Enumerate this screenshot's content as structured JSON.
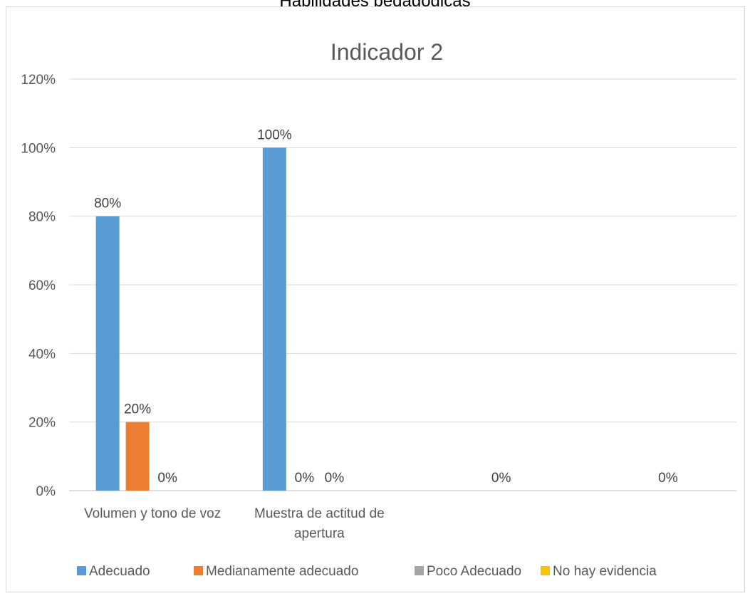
{
  "page_title": "Habilidades pedagógicas",
  "chart_data": {
    "type": "bar",
    "title": "Indicador 2",
    "xlabel": "",
    "ylabel": "",
    "ylim": [
      0,
      1.2
    ],
    "yticks": [
      "0%",
      "20%",
      "40%",
      "60%",
      "80%",
      "100%",
      "120%"
    ],
    "categories": [
      [
        "Volumen y tono de voz"
      ],
      [
        "Muestra de actitud de",
        "apertura"
      ],
      [
        ""
      ],
      [
        ""
      ]
    ],
    "series": [
      {
        "name": "Adecuado",
        "color": "#5b9bd5",
        "values": [
          0.8,
          1.0,
          null,
          null
        ],
        "labels": [
          "80%",
          "100%",
          "",
          ""
        ]
      },
      {
        "name": "Medianamente adecuado",
        "color": "#ed7d31",
        "values": [
          0.2,
          0.0,
          null,
          null
        ],
        "labels": [
          "20%",
          "0%",
          "",
          ""
        ]
      },
      {
        "name": "Poco Adecuado",
        "color": "#a5a5a5",
        "values": [
          0.0,
          0.0,
          0.0,
          0.0
        ],
        "labels": [
          "0%",
          "0%",
          "0%",
          "0%"
        ]
      },
      {
        "name": "No hay evidencia",
        "color": "#ffc000",
        "values": [
          null,
          null,
          null,
          null
        ],
        "labels": [
          "",
          "",
          "",
          ""
        ]
      }
    ],
    "grid": true,
    "legend_position": "bottom"
  }
}
